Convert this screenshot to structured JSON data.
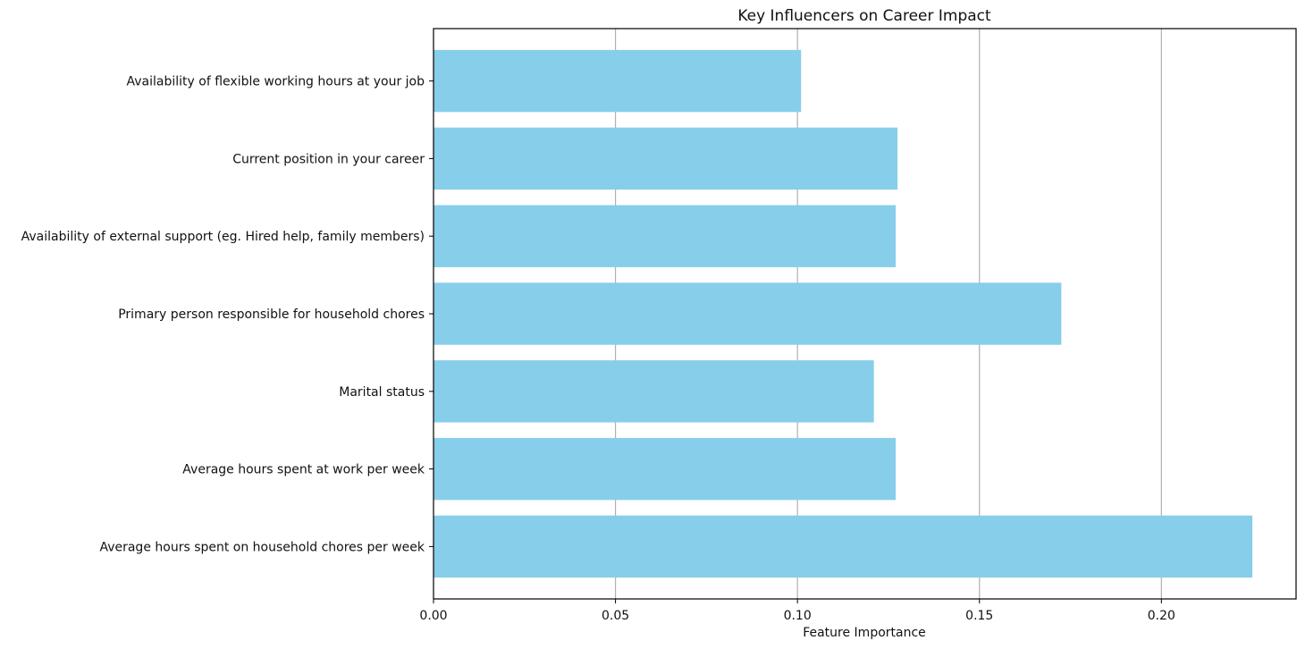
{
  "chart_data": {
    "type": "bar",
    "orientation": "horizontal",
    "title": "Key Influencers on Career Impact",
    "xlabel": "Feature Importance",
    "ylabel": "",
    "xlim": [
      0,
      0.237
    ],
    "xticks": [
      0.0,
      0.05,
      0.1,
      0.15,
      0.2
    ],
    "xtick_labels": [
      "0.00",
      "0.05",
      "0.10",
      "0.15",
      "0.20"
    ],
    "grid": "x",
    "categories": [
      "Availability of flexible working hours at your job",
      "Current position in your career",
      "Availability of external support (eg. Hired help, family members)",
      "Primary person responsible for household chores",
      "Marital status ",
      "Average hours spent at work per week",
      "Average hours spent on household chores per week"
    ],
    "values": [
      0.101,
      0.1275,
      0.127,
      0.1725,
      0.121,
      0.127,
      0.225
    ],
    "bar_color": "#87ceeb",
    "grid_color": "#b0b0b0"
  }
}
